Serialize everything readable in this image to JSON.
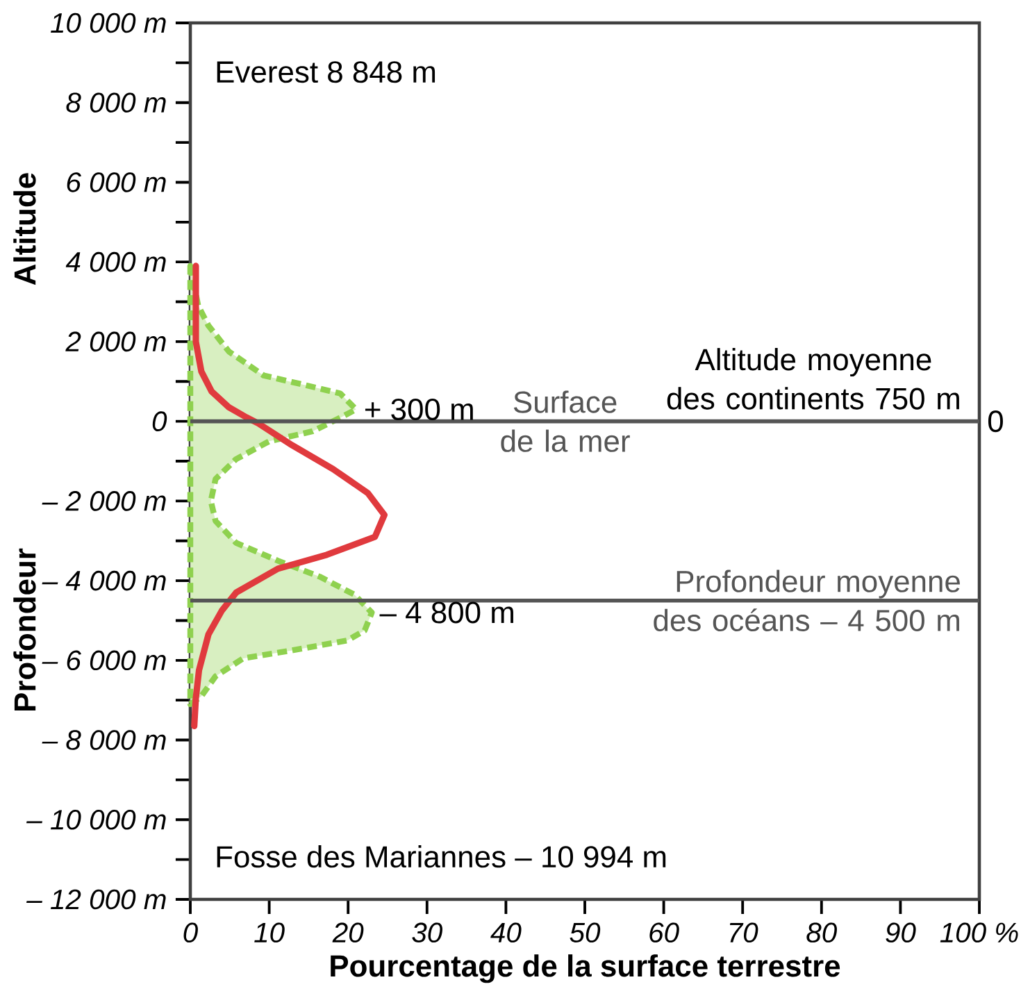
{
  "chart_data": {
    "type": "line",
    "xlabel": "Pourcentage de la surface terrestre",
    "ylabel": "Altitude",
    "xlim": [
      0,
      100
    ],
    "xticks": [
      0,
      10,
      20,
      30,
      40,
      50,
      60,
      70,
      80,
      90,
      {
        "value": 100,
        "label": "100 %"
      }
    ],
    "ylim": [
      -12000,
      10000
    ],
    "yticks": [
      {
        "value": 10000,
        "label": "10 000 m"
      },
      {
        "value": 8000,
        "label": "8 000 m"
      },
      {
        "value": 6000,
        "label": "6 000 m"
      },
      {
        "value": 4000,
        "label": "4 000 m"
      },
      {
        "value": 2000,
        "label": "2 000 m"
      },
      {
        "value": 0,
        "label": "0"
      },
      {
        "value": -2000,
        "label": "– 2 000 m"
      },
      {
        "value": -4000,
        "label": "– 4 000 m"
      },
      {
        "value": -6000,
        "label": "– 6 000 m"
      },
      {
        "value": -8000,
        "label": "– 8 000 m"
      },
      {
        "value": -10000,
        "label": "– 10 000 m"
      },
      {
        "value": -12000,
        "label": "– 12 000 m"
      }
    ],
    "marker": "none",
    "series": [
      {
        "type": "area",
        "color": "#8fd14f",
        "line_style": "dashed",
        "x": [
          0,
          1.0,
          2.3,
          4.9,
          9.3,
          13.7,
          19.0,
          21,
          19.1,
          15.5,
          10.0,
          5.8,
          3.2,
          2.6,
          3.2,
          5.8,
          11.1,
          16.4,
          20.8,
          22.5,
          23,
          22.1,
          19.9,
          12.9,
          6.7,
          3.2,
          1.4,
          0
        ],
        "values": [
          3900,
          2900,
          2400,
          1750,
          1150,
          950,
          700,
          300,
          100,
          -250,
          -500,
          -950,
          -1450,
          -2000,
          -2500,
          -3050,
          -3500,
          -3900,
          -4350,
          -4700,
          -4800,
          -5250,
          -5500,
          -5750,
          -5950,
          -6400,
          -6900,
          -7100
        ]
      },
      {
        "color": "#e03a3e",
        "line_style": "solid",
        "x": [
          0.7,
          0.7,
          1.4,
          2.7,
          4.9,
          7.1,
          8.6,
          12.9,
          18.1,
          22.5,
          24.6,
          23.4,
          17.3,
          11.1,
          5.8,
          4.0,
          2.3,
          1.1,
          0.7,
          0.5
        ],
        "values": [
          3900,
          2000,
          1250,
          750,
          350,
          100,
          -50,
          -600,
          -1200,
          -1800,
          -2350,
          -2900,
          -3350,
          -3700,
          -4300,
          -4750,
          -5350,
          -6250,
          -6950,
          -7650
        ]
      }
    ],
    "ref_lines": [
      {
        "axis": "y",
        "value": 0,
        "label": "Surface de la mer",
        "color": "#555555"
      },
      {
        "axis": "y",
        "value": -4500,
        "label": "Profondeur moyenne des océans – 4 500 m",
        "color": "#555555"
      }
    ],
    "annotations": [
      "Everest 8 848 m",
      "Fosse des Mariannes – 10 994 m",
      {
        "text": "+ 300 m",
        "x": 21,
        "y": 300
      },
      {
        "text": "– 4 800 m",
        "x": 23,
        "y": -4800
      },
      {
        "text": "0",
        "x": 100,
        "y": 0
      },
      "Altitude moyenne des continents 750 m",
      "Profondeur"
    ]
  }
}
